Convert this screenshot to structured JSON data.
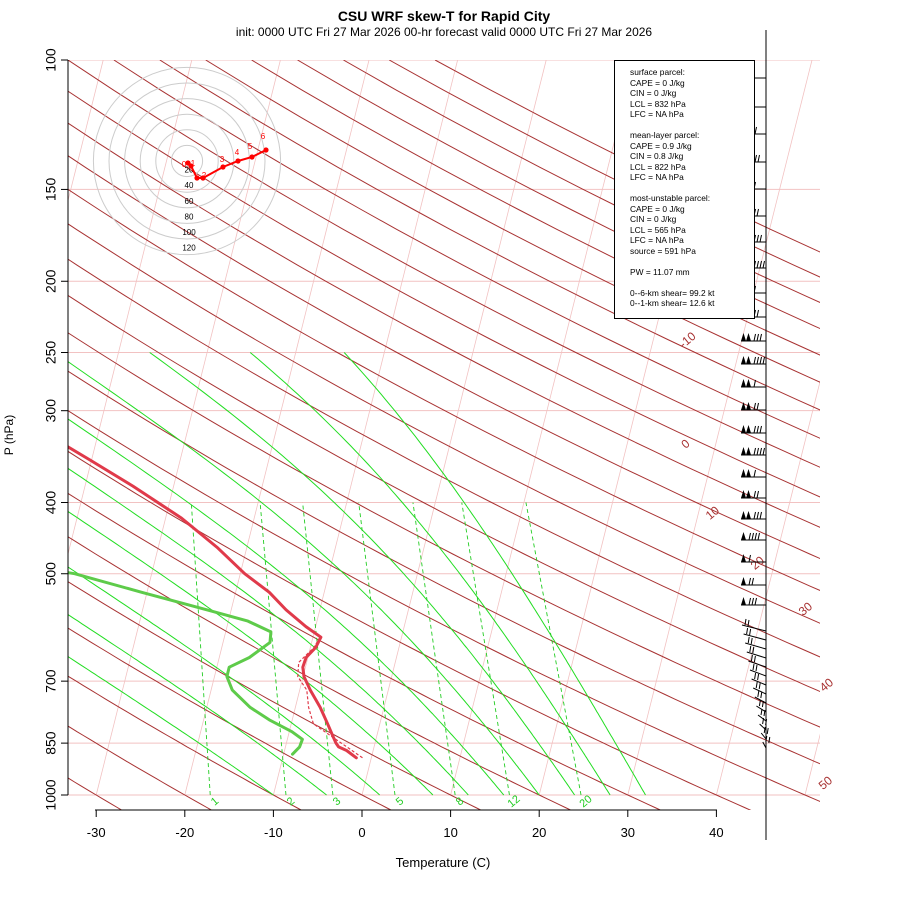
{
  "header": {
    "title": "CSU WRF skew-T for Rapid City",
    "subtitle": "init: 0000 UTC Fri 27 Mar 2026     00-hr forecast valid 0000 UTC Fri 27 Mar 2026"
  },
  "info_box": {
    "surface": [
      "surface parcel:",
      "CAPE = 0 J/kg",
      "CIN = 0 J/kg",
      "LCL = 832 hPa",
      "LFC = NA hPa"
    ],
    "mean_layer": [
      "mean-layer parcel:",
      "CAPE = 0.9 J/kg",
      "CIN = 0.8 J/kg",
      "LCL = 822 hPa",
      "LFC = NA hPa"
    ],
    "most_unstable": [
      "most-unstable parcel:",
      "CAPE = 0 J/kg",
      "CIN = 0 J/kg",
      "LCL = 565 hPa",
      "LFC = NA hPa",
      "source = 591 hPa"
    ],
    "pw": "PW =  11.07 mm",
    "shear": [
      "0--6-km shear= 99.2 kt",
      "0--1-km shear= 12.6 kt"
    ]
  },
  "colors": {
    "temperature": "#e03a4a",
    "dewpoint": "#5ecb4a",
    "isotherm": "#f2c2c2",
    "dry_adiabat": "#a83232",
    "moist_adiabat": "#22dd22",
    "mixing_ratio": "#22cc22",
    "hodograph": "#ff0000",
    "hodo_ring": "#cccccc"
  },
  "chart_data": {
    "type": "line",
    "title": "CSU WRF skew-T for Rapid City",
    "xlabel": "Temperature (C)",
    "ylabel": "P (hPa)",
    "x_ticks": [
      -30,
      -20,
      -10,
      0,
      10,
      20,
      30,
      40
    ],
    "p_ticks": [
      100,
      150,
      200,
      250,
      300,
      400,
      500,
      700,
      850,
      1000
    ],
    "skewed_isotherm_labels": [
      "-10",
      "0",
      "10",
      "20",
      "30",
      "40",
      "50"
    ],
    "mixing_ratio_labels": [
      "1",
      "2",
      "3",
      "5",
      "8",
      "12",
      "20"
    ],
    "series": [
      {
        "name": "temperature",
        "p": [
          890,
          870,
          860,
          850,
          830,
          800,
          760,
          720,
          690,
          670,
          650,
          630,
          610,
          590,
          560,
          530,
          500,
          460,
          420,
          380,
          350,
          320,
          290,
          260,
          235,
          215,
          200,
          190,
          175,
          160,
          150,
          135,
          120,
          110,
          105
        ],
        "T": [
          -1.7,
          -3.0,
          -4.0,
          -4.4,
          -5.0,
          -5.9,
          -7.2,
          -8.8,
          -9.9,
          -10.3,
          -10.2,
          -9.4,
          -9.1,
          -11.1,
          -13.8,
          -16.2,
          -19.5,
          -23.4,
          -28.2,
          -34.6,
          -40.2,
          -46.4,
          -52.9,
          -59.6,
          -65.4,
          -70.5,
          -73.4,
          -73.7,
          -71.5,
          -66.9,
          -62.5,
          -60.3,
          -58.0,
          -55.5,
          -54.4
        ]
      },
      {
        "name": "dewpoint",
        "p": [
          880,
          860,
          840,
          820,
          790,
          760,
          720,
          690,
          670,
          650,
          620,
          600,
          580,
          560,
          530,
          500,
          470,
          450,
          440,
          420,
          400,
          380,
          360,
          340,
          320,
          300,
          280,
          260,
          250,
          235,
          220,
          200,
          185
        ],
        "Td": [
          -9.0,
          -8.4,
          -8.3,
          -9.7,
          -12.6,
          -15.1,
          -17.6,
          -18.6,
          -18.6,
          -16.6,
          -14.7,
          -14.9,
          -17.8,
          -22.7,
          -30.6,
          -38.7,
          -53.3,
          -63.3,
          -59.4,
          -56.5,
          -53.3,
          -57.9,
          -62.2,
          -62.0,
          -60.3,
          -61.4,
          -66.6,
          -72.9,
          -76.8,
          -80.0,
          -85.2,
          -91.7,
          -93.9
        ]
      }
    ],
    "hodograph": {
      "ring_labels": [
        "20",
        "40",
        "60",
        "80",
        "100",
        "120"
      ],
      "height_labels": [
        "0",
        "1",
        "2",
        "3",
        "4",
        "5",
        "6"
      ]
    }
  }
}
